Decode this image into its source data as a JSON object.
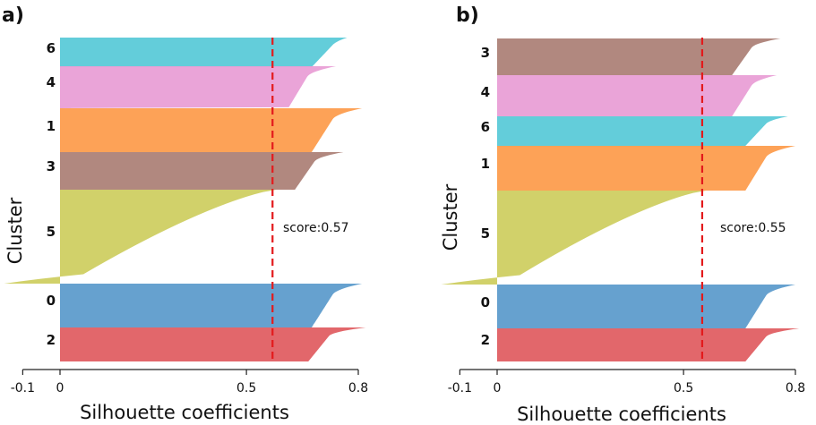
{
  "figure": {
    "ylabel": "Cluster",
    "xlabel": "Silhouette coefficients",
    "xticks": [
      -0.1,
      0,
      0.5,
      0.8
    ],
    "tick_labels": [
      "-0.1",
      "0",
      "0.5",
      "0.8"
    ]
  },
  "chart_data": [
    {
      "type": "silhouette",
      "panel": "a)",
      "xlim": [
        -0.1,
        0.8
      ],
      "score_label": "score:0.57",
      "score": 0.57,
      "clusters": [
        {
          "label": "6",
          "color": "#5bcad8",
          "max": 0.77,
          "min": 0.0,
          "knee": 0.75,
          "shape": "flat"
        },
        {
          "label": "4",
          "color": "#e99fd6",
          "max": 0.74,
          "min": -0.03,
          "knee": 0.68,
          "shape": "flat"
        },
        {
          "label": "1",
          "color": "#fd9d4e",
          "max": 0.81,
          "min": 0.0,
          "knee": 0.75,
          "shape": "flat"
        },
        {
          "label": "3",
          "color": "#ad8278",
          "max": 0.76,
          "min": 0.0,
          "knee": 0.7,
          "shape": "flat"
        },
        {
          "label": "5",
          "color": "#cfcf62",
          "max": 0.58,
          "min": -0.15,
          "knee": 0.48,
          "shape": "decay"
        },
        {
          "label": "0",
          "color": "#5e9ccc",
          "max": 0.81,
          "min": 0.0,
          "knee": 0.75,
          "shape": "step"
        },
        {
          "label": "2",
          "color": "#e05f63",
          "max": 0.82,
          "min": 0.0,
          "knee": 0.74,
          "shape": "flat"
        }
      ]
    },
    {
      "type": "silhouette",
      "panel": "b)",
      "xlim": [
        -0.1,
        0.8
      ],
      "score_label": "score:0.55",
      "score": 0.55,
      "clusters": [
        {
          "label": "3",
          "color": "#ad8278",
          "max": 0.76,
          "min": 0.0,
          "knee": 0.7,
          "shape": "step"
        },
        {
          "label": "4",
          "color": "#e99fd6",
          "max": 0.75,
          "min": 0.0,
          "knee": 0.7,
          "shape": "flat"
        },
        {
          "label": "6",
          "color": "#5bcad8",
          "max": 0.78,
          "min": 0.0,
          "knee": 0.74,
          "shape": "flat"
        },
        {
          "label": "1",
          "color": "#fd9d4e",
          "max": 0.8,
          "min": 0.0,
          "knee": 0.74,
          "shape": "flat"
        },
        {
          "label": "5",
          "color": "#cfcf62",
          "max": 0.56,
          "min": -0.15,
          "knee": 0.47,
          "shape": "decay"
        },
        {
          "label": "0",
          "color": "#5e9ccc",
          "max": 0.8,
          "min": 0.0,
          "knee": 0.74,
          "shape": "step"
        },
        {
          "label": "2",
          "color": "#e05f63",
          "max": 0.81,
          "min": 0.0,
          "knee": 0.74,
          "shape": "flat"
        }
      ]
    }
  ]
}
